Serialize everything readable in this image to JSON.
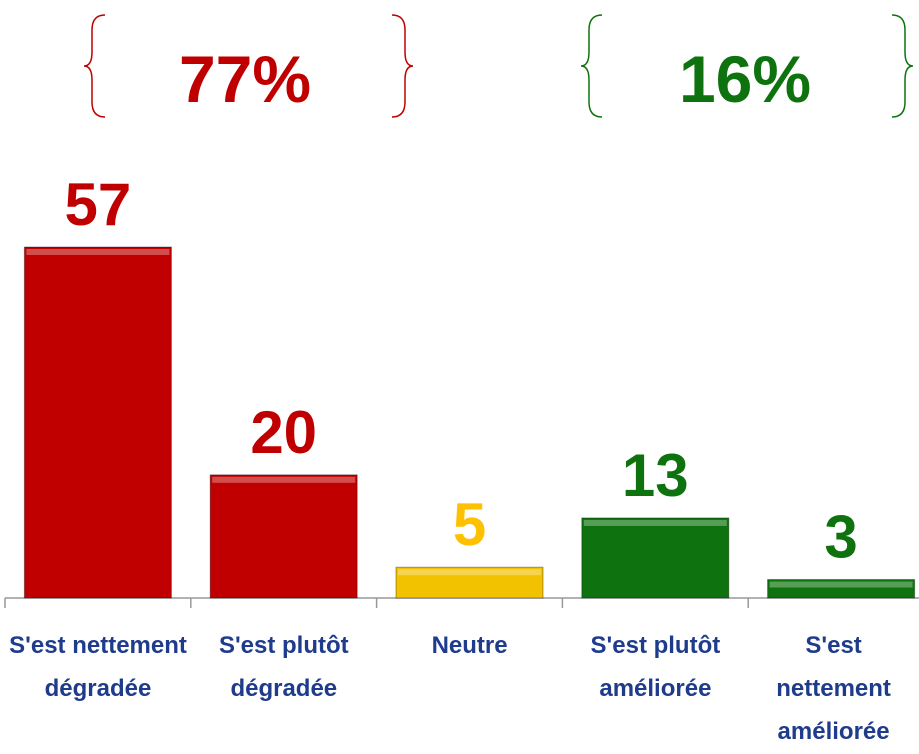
{
  "chart_data": {
    "type": "bar",
    "categories": [
      "S'est nettement dégradée",
      "S'est plutôt dégradée",
      "Neutre",
      "S'est plutôt améliorée",
      "S'est nettement améliorée"
    ],
    "values": [
      57,
      20,
      5,
      13,
      3
    ],
    "colors": [
      "#c00000",
      "#c00000",
      "#f2c200",
      "#0e730e",
      "#0e730e"
    ],
    "label_colors": [
      "#c00000",
      "#c00000",
      "#ffc000",
      "#0e730e",
      "#0e730e"
    ],
    "annotations": [
      {
        "text": "77%",
        "color": "#c00000"
      },
      {
        "text": "16%",
        "color": "#0e730e"
      }
    ]
  }
}
